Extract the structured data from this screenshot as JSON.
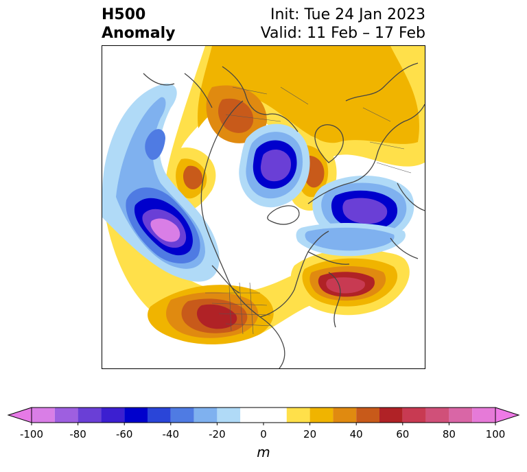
{
  "header": {
    "title_line1": "H500",
    "title_line2": "Anomaly",
    "init_line": "Init: Tue 24 Jan 2023",
    "valid_line": "Valid: 11 Feb – 17 Feb"
  },
  "map": {
    "projection": "polar-stereographic",
    "field": "500 hPa geopotential height anomaly"
  },
  "colorbar": {
    "unit": "m",
    "tick_labels": [
      "-100",
      "-80",
      "-60",
      "-40",
      "-20",
      "0",
      "20",
      "40",
      "60",
      "80",
      "100"
    ],
    "levels": [
      -100,
      -90,
      -80,
      -70,
      -60,
      -50,
      -40,
      -30,
      -20,
      -10,
      10,
      20,
      30,
      40,
      50,
      60,
      70,
      80,
      90,
      100
    ],
    "colors": [
      "#d97ee6",
      "#9e5fe0",
      "#6a3fd6",
      "#3c1fd0",
      "#0000cc",
      "#2a45d8",
      "#4f7be3",
      "#7fb1ef",
      "#b0daf7",
      "#ffffff",
      "#ffe04a",
      "#f0b400",
      "#e08a10",
      "#c85a1a",
      "#b02226",
      "#c83a52",
      "#d05079",
      "#d966a6",
      "#e67ad8"
    ],
    "under_color": "#e67ae6",
    "over_color": "#ee7ae6"
  }
}
